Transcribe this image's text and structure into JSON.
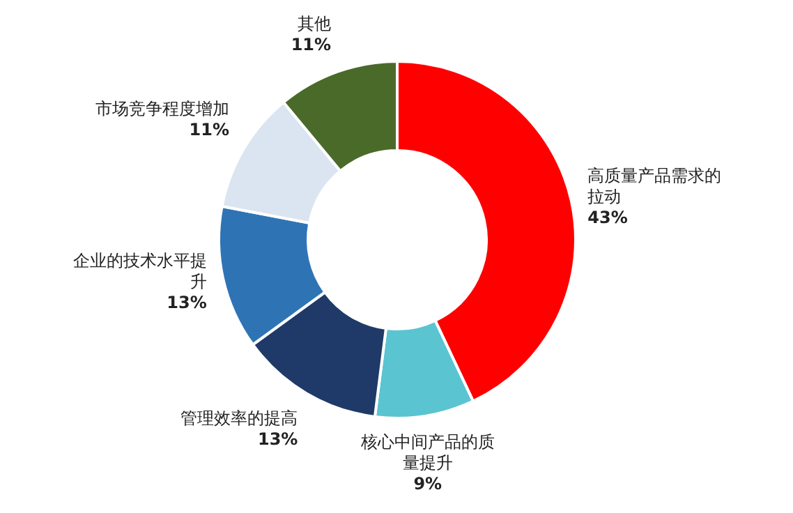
{
  "chart_data": {
    "type": "donut",
    "categories": [
      "高质量产品需求的拉动",
      "核心中间产品的质量提升",
      "管理效率的提高",
      "企业的技术水平提升",
      "市场竞争程度增加",
      "其他"
    ],
    "values": [
      43,
      9,
      13,
      13,
      11,
      11
    ],
    "value_labels": [
      "43%",
      "9%",
      "13%",
      "13%",
      "11%",
      "11%"
    ],
    "colors": [
      "#ff0000",
      "#5bc4d1",
      "#1f3a68",
      "#2e74b5",
      "#dbe5f1",
      "#4a6a2a"
    ]
  }
}
